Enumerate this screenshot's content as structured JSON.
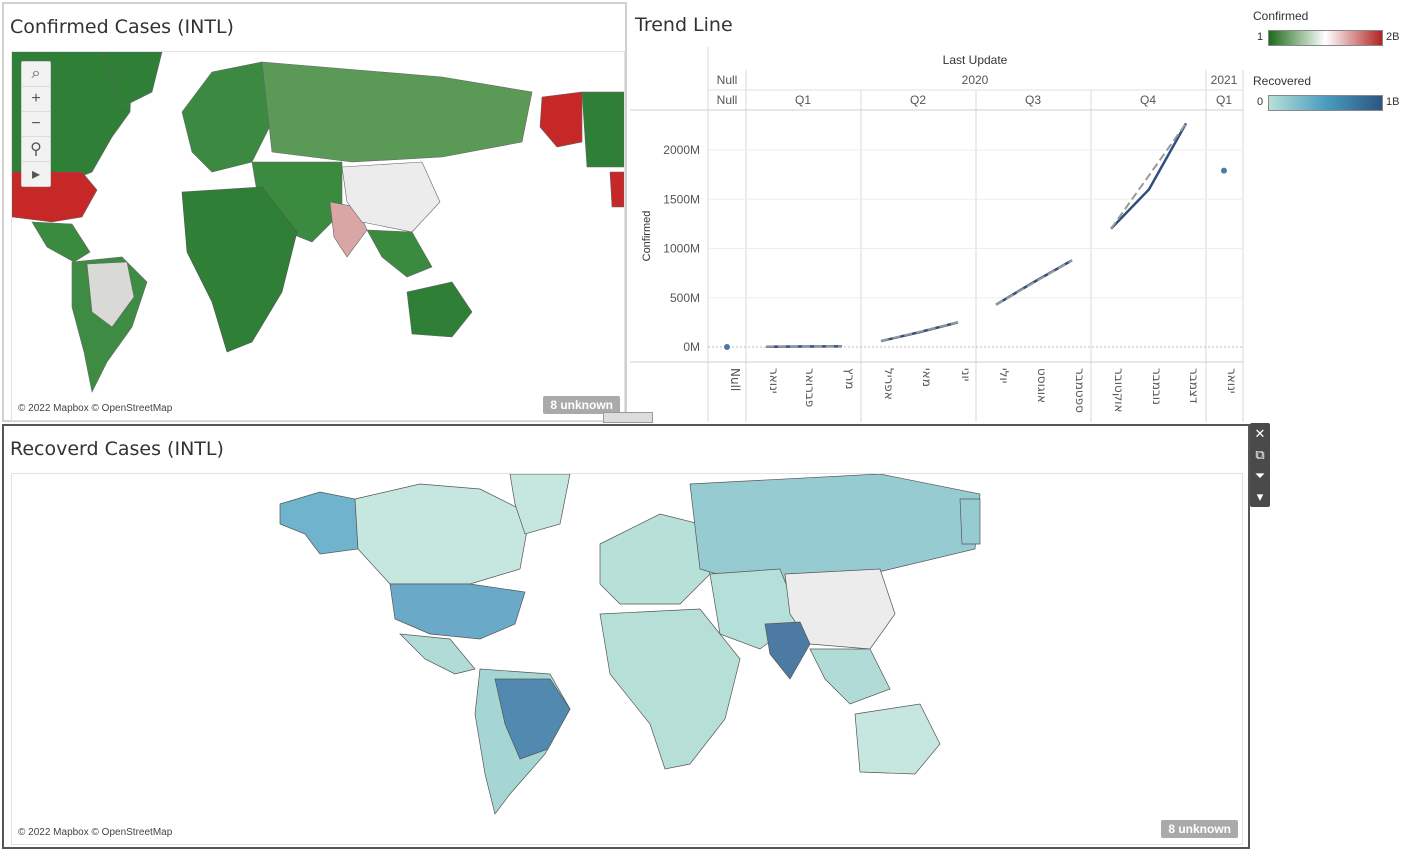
{
  "confirmed_map": {
    "title": "Confirmed Cases (INTL)",
    "attribution": "© 2022 Mapbox © OpenStreetMap",
    "unknown_badge": "8 unknown",
    "tools": [
      {
        "icon": "search-icon",
        "glyph": "⌕"
      },
      {
        "icon": "zoom-in-icon",
        "glyph": "+"
      },
      {
        "icon": "zoom-out-icon",
        "glyph": "−"
      },
      {
        "icon": "pin-icon",
        "glyph": "⚲"
      },
      {
        "icon": "play-icon",
        "glyph": "▸"
      }
    ]
  },
  "trend": {
    "title": "Trend Line",
    "header_field": "Last Update",
    "years": [
      "Null",
      "2020",
      "2021"
    ],
    "quarters": [
      "Null",
      "Q1",
      "Q2",
      "Q3",
      "Q4",
      "Q1"
    ],
    "months": [
      "Null",
      "ינואר",
      "פברואר",
      "מרץ",
      "אפריל",
      "מאי",
      "יוני",
      "יולי",
      "אוגוסט",
      "ספטמבר",
      "אוקטובר",
      "נובמבר",
      "דצמבר",
      "ינואר"
    ]
  },
  "chart_data": {
    "type": "line",
    "title": "Trend Line",
    "xlabel": "Last Update",
    "ylabel": "Confirmed",
    "y_ticks": [
      "0M",
      "500M",
      "1000M",
      "1500M",
      "2000M"
    ],
    "ylim": [
      0,
      2300
    ],
    "y_unit": "M",
    "categories": [
      "Null",
      "ינואר",
      "פברואר",
      "מרץ",
      "אפריל",
      "מאי",
      "יוני",
      "יולי",
      "אוגוסט",
      "ספטמבר",
      "אוקטובר",
      "נובמבר",
      "דצמבר",
      "ינואר"
    ],
    "series": [
      {
        "name": "Confirmed",
        "color": "#2f4f7f",
        "segments": [
          {
            "points": [
              [
                0,
                0
              ]
            ],
            "kind": "dot"
          },
          {
            "points": [
              [
                1,
                3
              ],
              [
                2,
                5
              ],
              [
                3,
                6
              ]
            ],
            "kind": "line"
          },
          {
            "points": [
              [
                4,
                60
              ],
              [
                5,
                150
              ],
              [
                6,
                250
              ]
            ],
            "kind": "line"
          },
          {
            "points": [
              [
                7,
                430
              ],
              [
                8,
                660
              ],
              [
                9,
                880
              ]
            ],
            "kind": "line"
          },
          {
            "points": [
              [
                10,
                1200
              ],
              [
                11,
                1600
              ],
              [
                12,
                2270
              ]
            ],
            "kind": "line"
          },
          {
            "points": [
              [
                13,
                1790
              ]
            ],
            "kind": "dot"
          }
        ]
      }
    ],
    "trendline": true
  },
  "legends": {
    "confirmed": {
      "title": "Confirmed",
      "min": "1",
      "max": "2B",
      "colors": [
        "#1a6b1a",
        "#ffffff",
        "#b22222"
      ]
    },
    "recovered": {
      "title": "Recovered",
      "min": "0",
      "max": "1B",
      "colors": [
        "#b8e0d8",
        "#4a9cc0",
        "#2d5582"
      ]
    }
  },
  "recovered_map": {
    "title": "Recoverd Cases (INTL)",
    "attribution": "© 2022 Mapbox © OpenStreetMap",
    "unknown_badge": "8 unknown"
  },
  "float_toolbar": [
    {
      "icon": "close-icon",
      "glyph": "✕"
    },
    {
      "icon": "open-external-icon",
      "glyph": "⧉"
    },
    {
      "icon": "filter-icon",
      "glyph": "⏷"
    },
    {
      "icon": "more-options-icon",
      "glyph": "▾"
    }
  ]
}
